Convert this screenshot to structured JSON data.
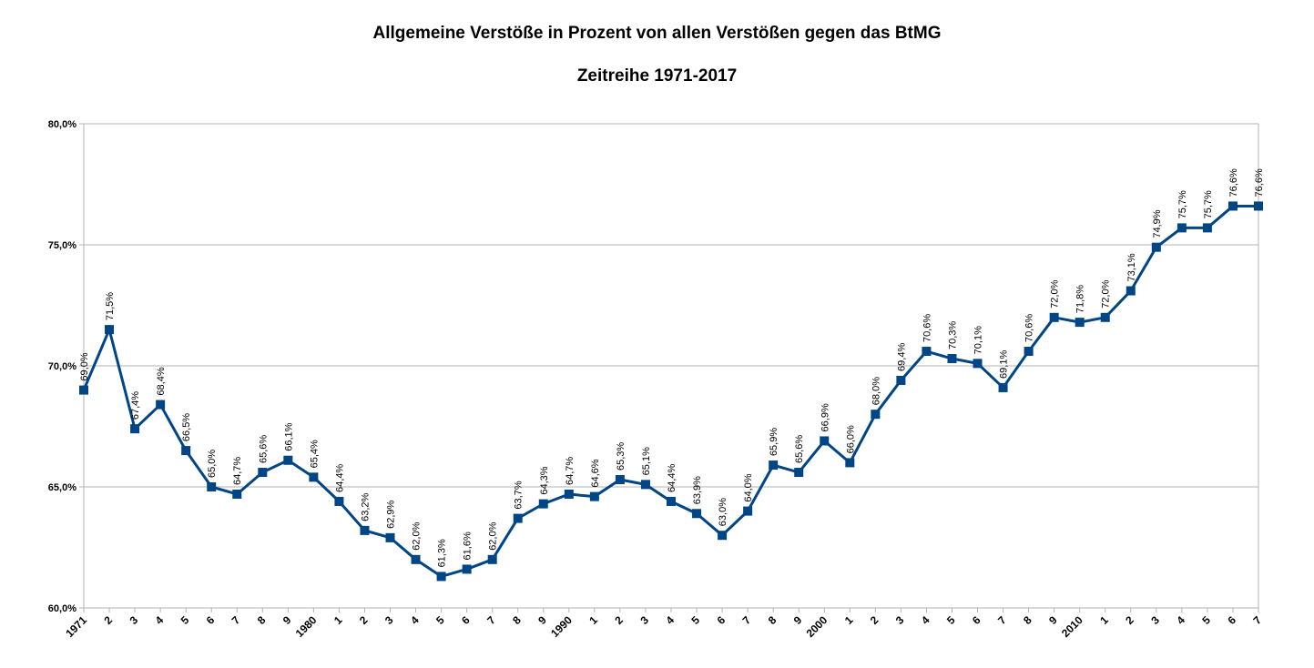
{
  "chart_data": {
    "type": "line",
    "title": "Allgemeine Verstöße in Prozent von allen Verstößen gegen das BtMG",
    "subtitle": "Zeitreihe 1971-2017",
    "xlabel": "",
    "ylabel": "",
    "ylim": [
      60,
      80
    ],
    "ytick_labels": [
      "60,0%",
      "65,0%",
      "70,0%",
      "75,0%",
      "80,0%"
    ],
    "grid": true,
    "legend": "none",
    "line_color": "#004586",
    "categories": [
      "1971",
      "2",
      "3",
      "4",
      "5",
      "6",
      "7",
      "8",
      "9",
      "1980",
      "1",
      "2",
      "3",
      "4",
      "5",
      "6",
      "7",
      "8",
      "9",
      "1990",
      "1",
      "2",
      "3",
      "4",
      "5",
      "6",
      "7",
      "8",
      "9",
      "2000",
      "1",
      "2",
      "3",
      "4",
      "5",
      "6",
      "7",
      "8",
      "9",
      "2010",
      "1",
      "2",
      "3",
      "4",
      "5",
      "6",
      "7"
    ],
    "series": [
      {
        "values": [
          69.0,
          71.5,
          67.4,
          68.4,
          66.5,
          65.0,
          64.7,
          65.6,
          66.1,
          65.4,
          64.4,
          63.2,
          62.9,
          62.0,
          61.3,
          61.6,
          62.0,
          63.7,
          64.3,
          64.7,
          64.6,
          65.3,
          65.1,
          64.4,
          63.9,
          63.0,
          64.0,
          65.9,
          65.6,
          66.9,
          66.0,
          68.0,
          69.4,
          70.6,
          70.3,
          70.1,
          69.1,
          70.6,
          72.0,
          71.8,
          72.0,
          73.1,
          74.9,
          75.7,
          75.7,
          76.6,
          76.6
        ],
        "labels": [
          "69,0%",
          "71,5%",
          "67,4%",
          "68,4%",
          "66,5%",
          "65,0%",
          "64,7%",
          "65,6%",
          "66,1%",
          "65,4%",
          "64,4%",
          "63,2%",
          "62,9%",
          "62,0%",
          "61,3%",
          "61,6%",
          "62,0%",
          "63,7%",
          "64,3%",
          "64,7%",
          "64,6%",
          "65,3%",
          "65,1%",
          "64,4%",
          "63,9%",
          "63,0%",
          "64,0%",
          "65,9%",
          "65,6%",
          "66,9%",
          "66,0%",
          "68,0%",
          "69,4%",
          "70,6%",
          "70,3%",
          "70,1%",
          "69,1%",
          "70,6%",
          "72,0%",
          "71,8%",
          "72,0%",
          "73,1%",
          "74,9%",
          "75,7%",
          "75,7%",
          "76,6%",
          "76,6%"
        ]
      }
    ]
  }
}
